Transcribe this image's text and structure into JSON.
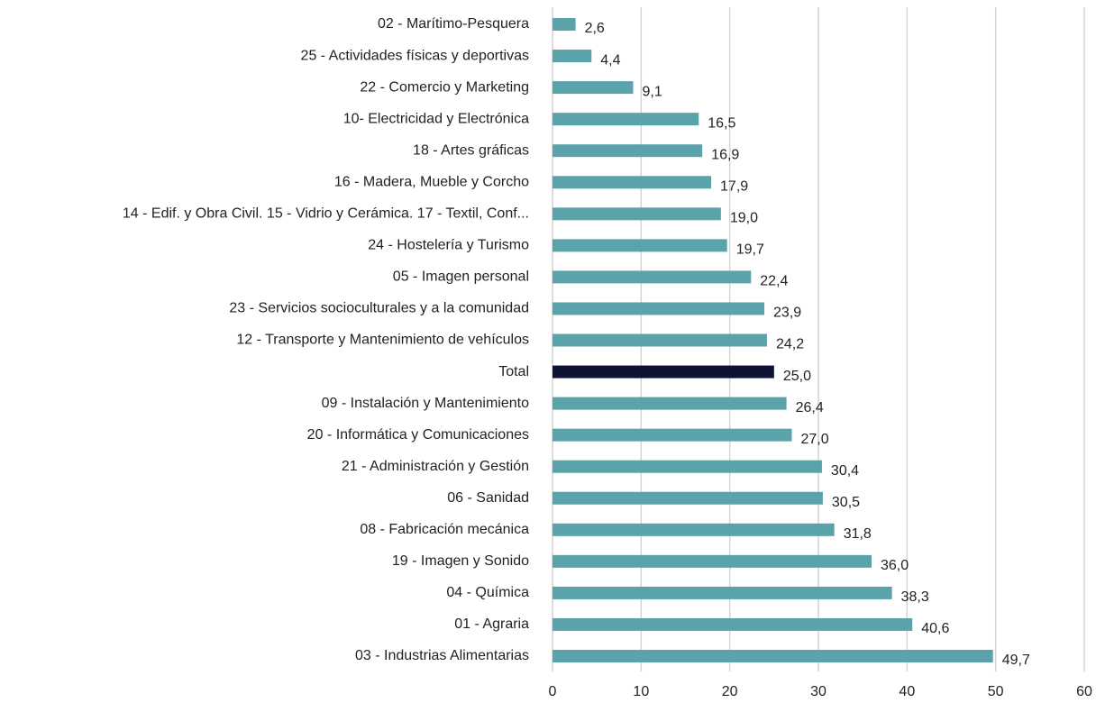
{
  "chart_data": {
    "type": "bar",
    "orientation": "horizontal",
    "categories": [
      "02 - Marítimo-Pesquera",
      "25 - Actividades físicas y deportivas",
      "22 - Comercio y Marketing",
      "10- Electricidad y Electrónica",
      "18 - Artes gráficas",
      "16 - Madera, Mueble y Corcho",
      "14 - Edif. y Obra Civil. 15 - Vidrio y Cerámica. 17 - Textil, Conf...",
      "24 - Hostelería y Turismo",
      "05 - Imagen personal",
      "23 - Servicios socioculturales y a la comunidad",
      "12 - Transporte y Mantenimiento de vehículos",
      "Total",
      "09 - Instalación y Mantenimiento",
      "20 - Informática y Comunicaciones",
      "21 - Administración y Gestión",
      "06 - Sanidad",
      "08 - Fabricación mecánica",
      "19 - Imagen y Sonido",
      "04 - Química",
      "01 - Agraria",
      "03 - Industrias Alimentarias"
    ],
    "values": [
      2.6,
      4.4,
      9.1,
      16.5,
      16.9,
      17.9,
      19.0,
      19.7,
      22.4,
      23.9,
      24.2,
      25.0,
      26.4,
      27.0,
      30.4,
      30.5,
      31.8,
      36.0,
      38.3,
      40.6,
      49.7
    ],
    "value_labels": [
      "2,6",
      "4,4",
      "9,1",
      "16,5",
      "16,9",
      "17,9",
      "19,0",
      "19,7",
      "22,4",
      "23,9",
      "24,2",
      "25,0",
      "26,4",
      "27,0",
      "30,4",
      "30,5",
      "31,8",
      "36,0",
      "38,3",
      "40,6",
      "49,7"
    ],
    "colors": [
      "#5ba3ab",
      "#5ba3ab",
      "#5ba3ab",
      "#5ba3ab",
      "#5ba3ab",
      "#5ba3ab",
      "#5ba3ab",
      "#5ba3ab",
      "#5ba3ab",
      "#5ba3ab",
      "#5ba3ab",
      "#0e1235",
      "#5ba3ab",
      "#5ba3ab",
      "#5ba3ab",
      "#5ba3ab",
      "#5ba3ab",
      "#5ba3ab",
      "#5ba3ab",
      "#5ba3ab",
      "#5ba3ab"
    ],
    "xlim": [
      0,
      60
    ],
    "xticks": [
      0,
      10,
      20,
      30,
      40,
      50,
      60
    ],
    "grid": true
  }
}
